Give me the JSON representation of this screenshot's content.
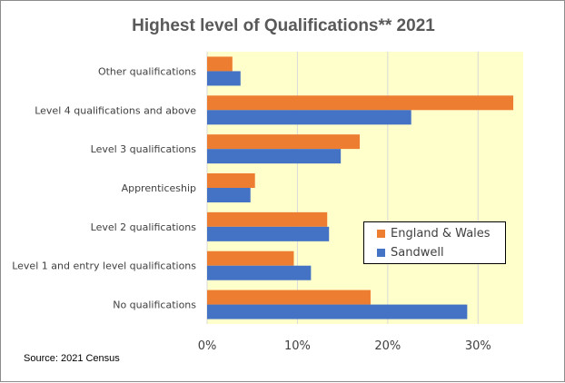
{
  "chart_data": {
    "type": "bar",
    "orientation": "horizontal",
    "title": "Highest level of Qualifications** 2021",
    "categories": [
      "Other qualifications",
      "Level 4 qualifications and above",
      "Level 3 qualifications",
      "Apprenticeship",
      "Level 2 qualifications",
      "Level 1 and entry level qualifications",
      "No qualifications"
    ],
    "series": [
      {
        "name": "England & Wales",
        "color": "#ed7d31",
        "values": [
          2.8,
          33.9,
          16.9,
          5.3,
          13.3,
          9.6,
          18.1
        ]
      },
      {
        "name": "Sandwell",
        "color": "#4472c4",
        "values": [
          3.7,
          22.6,
          14.8,
          4.8,
          13.5,
          11.5,
          28.8
        ]
      }
    ],
    "xlim": [
      0,
      35
    ],
    "xticks": [
      0,
      10,
      20,
      30
    ],
    "xtick_labels": [
      "0%",
      "10%",
      "20%",
      "30%"
    ],
    "plot_background": "#ffffcc",
    "grid": true,
    "legend_position": "bottom-right inside plot",
    "source": "Source: 2021 Census"
  }
}
